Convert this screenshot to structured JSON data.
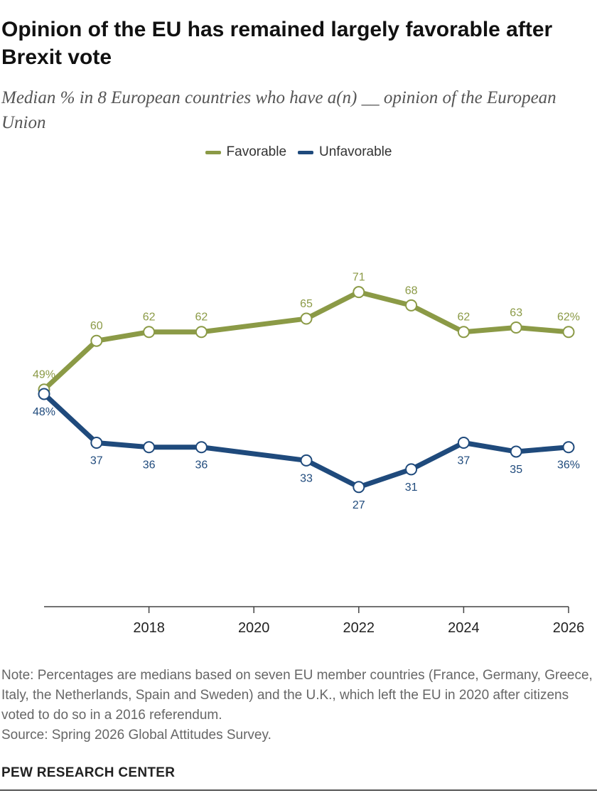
{
  "title": "Opinion of the EU has remained largely favorable after Brexit vote",
  "subtitle": "Median % in 8 European countries who have a(n) __ opinion of the European Union",
  "legend": {
    "favorable": "Favorable",
    "unfavorable": "Unfavorable"
  },
  "colors": {
    "favorable": "#8b9a46",
    "unfavorable": "#1f4a7c",
    "axis": "#444444",
    "marker_fill": "#ffffff"
  },
  "note": "Note: Percentages are medians based on seven EU member countries (France, Germany, Greece, Italy, the Netherlands, Spain and Sweden) and the U.K., which left the EU in 2020 after citizens voted to do so in a 2016 referendum.",
  "source": "Source: Spring 2026 Global Attitudes Survey.",
  "brand": "PEW RESEARCH CENTER",
  "chart_data": {
    "type": "line",
    "x": [
      2016,
      2017,
      2018,
      2019,
      2021,
      2022,
      2023,
      2024,
      2025,
      2026
    ],
    "xlim": [
      2016,
      2026
    ],
    "ylim": [
      0,
      100
    ],
    "x_ticks": [
      "2018",
      "2020",
      "2022",
      "2024",
      "2026"
    ],
    "grid": false,
    "legend_position": "top-center",
    "series": [
      {
        "name": "Favorable",
        "key": "favorable",
        "values": [
          49,
          60,
          62,
          62,
          65,
          71,
          68,
          62,
          63,
          62
        ],
        "labels": [
          "49%",
          "60",
          "62",
          "62",
          "65",
          "71",
          "68",
          "62",
          "63",
          "62%"
        ]
      },
      {
        "name": "Unfavorable",
        "key": "unfavorable",
        "values": [
          48,
          37,
          36,
          36,
          33,
          27,
          31,
          37,
          35,
          36
        ],
        "labels": [
          "48%",
          "37",
          "36",
          "36",
          "33",
          "27",
          "31",
          "37",
          "35",
          "36%"
        ]
      }
    ]
  }
}
